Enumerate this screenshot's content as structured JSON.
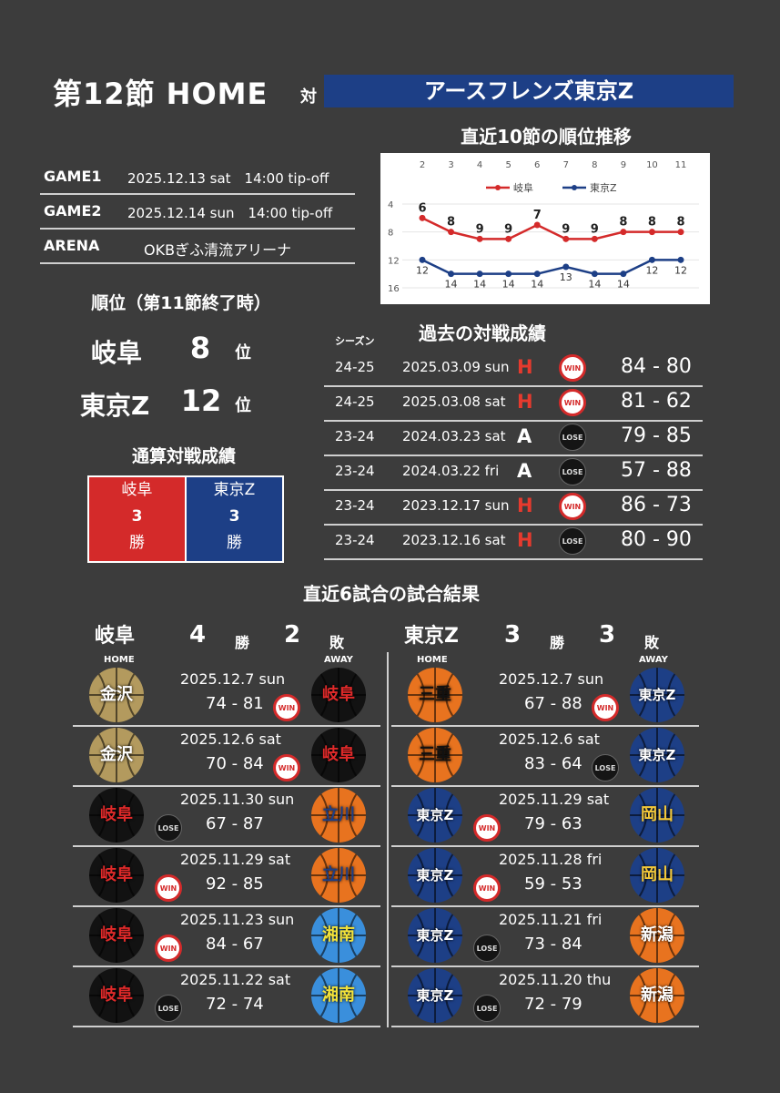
{
  "header": {
    "title": "第12節 HOME",
    "vs": "対",
    "opponent": "アースフレンズ東京Z"
  },
  "chart_data": {
    "type": "line",
    "title": "直近10節の順位推移",
    "x": [
      2,
      3,
      4,
      5,
      6,
      7,
      8,
      9,
      10,
      11
    ],
    "ylim": [
      4,
      16
    ],
    "yticks": [
      4,
      8,
      12,
      16
    ],
    "ydirection": "inverted",
    "legend": "top-center",
    "series": [
      {
        "name": "岐阜",
        "color": "#d42a2a",
        "values": [
          6,
          8,
          9,
          9,
          7,
          9,
          9,
          8,
          8,
          8
        ]
      },
      {
        "name": "東京Z",
        "color": "#1d3f86",
        "values": [
          12,
          14,
          14,
          14,
          14,
          13,
          14,
          14,
          12,
          12
        ]
      }
    ]
  },
  "info": [
    {
      "key": "GAME1",
      "value": "2025.12.13 sat　14:00 tip-off"
    },
    {
      "key": "GAME2",
      "value": "2025.12.14 sun　14:00 tip-off"
    },
    {
      "key": "ARENA",
      "value": "OKBぎふ清流アリーナ"
    }
  ],
  "rank": {
    "title": "順位（第11節終了時）",
    "unit": "位",
    "teams": [
      {
        "name": "岐阜",
        "rank": "8"
      },
      {
        "name": "東京Z",
        "rank": "12"
      }
    ]
  },
  "total": {
    "title": "通算対戦成績",
    "teams": [
      {
        "name": "岐阜",
        "wins": "3",
        "unit": "勝",
        "color": "#d42a2a"
      },
      {
        "name": "東京Z",
        "wins": "3",
        "unit": "勝",
        "color": "#1d3f86"
      }
    ]
  },
  "past": {
    "title": "過去の対戦成績",
    "season_label": "シーズン",
    "rows": [
      {
        "season": "24-25",
        "date": "2025.03.09 sun",
        "ha": "H",
        "result": "WIN",
        "score": "84 - 80"
      },
      {
        "season": "24-25",
        "date": "2025.03.08 sat",
        "ha": "H",
        "result": "WIN",
        "score": "81 - 62"
      },
      {
        "season": "23-24",
        "date": "2024.03.23 sat",
        "ha": "A",
        "result": "LOSE",
        "score": "79 - 85"
      },
      {
        "season": "23-24",
        "date": "2024.03.22 fri",
        "ha": "A",
        "result": "LOSE",
        "score": "57 - 88"
      },
      {
        "season": "23-24",
        "date": "2023.12.17 sun",
        "ha": "H",
        "result": "WIN",
        "score": "86 - 73"
      },
      {
        "season": "23-24",
        "date": "2023.12.16 sat",
        "ha": "H",
        "result": "LOSE",
        "score": "80 - 90"
      }
    ]
  },
  "recent": {
    "title": "直近6試合の試合結果",
    "home_label": "HOME",
    "away_label": "AWAY",
    "win_unit": "勝",
    "loss_unit": "敗",
    "left": {
      "team": "岐阜",
      "wins": "4",
      "losses": "2",
      "games": [
        {
          "home": "金沢",
          "home_color": "#b39a5e",
          "home_text": "#ffffff",
          "away": "岐阜",
          "away_color": "#121212",
          "away_text": "#e02a2a",
          "date": "2025.12.7 sun",
          "score": "74 - 81",
          "result": "WIN",
          "badge_side": "right"
        },
        {
          "home": "金沢",
          "home_color": "#b39a5e",
          "home_text": "#ffffff",
          "away": "岐阜",
          "away_color": "#121212",
          "away_text": "#e02a2a",
          "date": "2025.12.6 sat",
          "score": "70 - 84",
          "result": "WIN",
          "badge_side": "right"
        },
        {
          "home": "岐阜",
          "home_color": "#121212",
          "home_text": "#e02a2a",
          "away": "立川",
          "away_color": "#e8731f",
          "away_text": "#1d3f86",
          "date": "2025.11.30 sun",
          "score": "67 - 87",
          "result": "LOSE",
          "badge_side": "left"
        },
        {
          "home": "岐阜",
          "home_color": "#121212",
          "home_text": "#e02a2a",
          "away": "立川",
          "away_color": "#e8731f",
          "away_text": "#1d3f86",
          "date": "2025.11.29 sat",
          "score": "92 - 85",
          "result": "WIN",
          "badge_side": "left"
        },
        {
          "home": "岐阜",
          "home_color": "#121212",
          "home_text": "#e02a2a",
          "away": "湘南",
          "away_color": "#3a8fdc",
          "away_text": "#f3e23a",
          "date": "2025.11.23 sun",
          "score": "84 - 67",
          "result": "WIN",
          "badge_side": "left"
        },
        {
          "home": "岐阜",
          "home_color": "#121212",
          "home_text": "#e02a2a",
          "away": "湘南",
          "away_color": "#3a8fdc",
          "away_text": "#f3e23a",
          "date": "2025.11.22 sat",
          "score": "72 - 74",
          "result": "LOSE",
          "badge_side": "left"
        }
      ]
    },
    "right": {
      "team": "東京Z",
      "wins": "3",
      "losses": "3",
      "games": [
        {
          "home": "三重",
          "home_color": "#e8731f",
          "home_text": "#111111",
          "away": "東京Z",
          "away_color": "#1d3f86",
          "away_text": "#ffffff",
          "date": "2025.12.7 sun",
          "score": "67 - 88",
          "result": "WIN",
          "badge_side": "right"
        },
        {
          "home": "三重",
          "home_color": "#e8731f",
          "home_text": "#111111",
          "away": "東京Z",
          "away_color": "#1d3f86",
          "away_text": "#ffffff",
          "date": "2025.12.6 sat",
          "score": "83 - 64",
          "result": "LOSE",
          "badge_side": "right"
        },
        {
          "home": "東京Z",
          "home_color": "#1d3f86",
          "home_text": "#ffffff",
          "away": "岡山",
          "away_color": "#1d3f86",
          "away_text": "#f3c83a",
          "date": "2025.11.29 sat",
          "score": "79 - 63",
          "result": "WIN",
          "badge_side": "left"
        },
        {
          "home": "東京Z",
          "home_color": "#1d3f86",
          "home_text": "#ffffff",
          "away": "岡山",
          "away_color": "#1d3f86",
          "away_text": "#f3c83a",
          "date": "2025.11.28 fri",
          "score": "59 - 53",
          "result": "WIN",
          "badge_side": "left"
        },
        {
          "home": "東京Z",
          "home_color": "#1d3f86",
          "home_text": "#ffffff",
          "away": "新潟",
          "away_color": "#e8731f",
          "away_text": "#ffffff",
          "date": "2025.11.21 fri",
          "score": "73 - 84",
          "result": "LOSE",
          "badge_side": "left"
        },
        {
          "home": "東京Z",
          "home_color": "#1d3f86",
          "home_text": "#ffffff",
          "away": "新潟",
          "away_color": "#e8731f",
          "away_text": "#ffffff",
          "date": "2025.11.20 thu",
          "score": "72 - 79",
          "result": "LOSE",
          "badge_side": "left"
        }
      ]
    }
  }
}
